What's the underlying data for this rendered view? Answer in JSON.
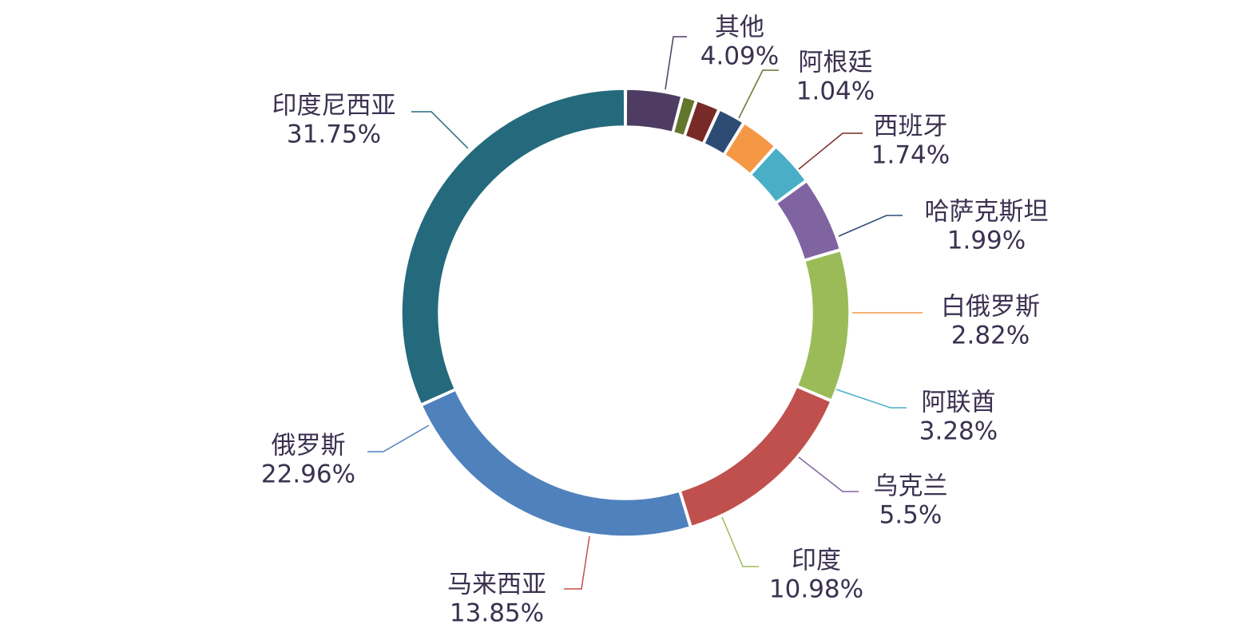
{
  "chart_data": {
    "type": "pie",
    "donut": true,
    "title": "",
    "legend": "none",
    "slices": [
      {
        "name": "其他",
        "value": 4.09,
        "pct_label": "4.09%",
        "color": "#4e3c62"
      },
      {
        "name": "阿根廷",
        "value": 1.04,
        "pct_label": "1.04%",
        "color": "#62762e"
      },
      {
        "name": "西班牙",
        "value": 1.74,
        "pct_label": "1.74%",
        "color": "#772a27"
      },
      {
        "name": "哈萨克斯坦",
        "value": 1.99,
        "pct_label": "1.99%",
        "color": "#2d4b73"
      },
      {
        "name": "白俄罗斯",
        "value": 2.82,
        "pct_label": "2.82%",
        "color": "#f49846"
      },
      {
        "name": "阿联酋",
        "value": 3.28,
        "pct_label": "3.28%",
        "color": "#4aaec6"
      },
      {
        "name": "乌克兰",
        "value": 5.5,
        "pct_label": "5.5%",
        "color": "#8064a2"
      },
      {
        "name": "印度",
        "value": 10.98,
        "pct_label": "10.98%",
        "color": "#9bbb59"
      },
      {
        "name": "马来西亚",
        "value": 13.85,
        "pct_label": "13.85%",
        "color": "#c0504d"
      },
      {
        "name": "俄罗斯",
        "value": 22.96,
        "pct_label": "22.96%",
        "color": "#4f81bd"
      },
      {
        "name": "印度尼西亚",
        "value": 31.75,
        "pct_label": "31.75%",
        "color": "#246a7c"
      }
    ]
  }
}
